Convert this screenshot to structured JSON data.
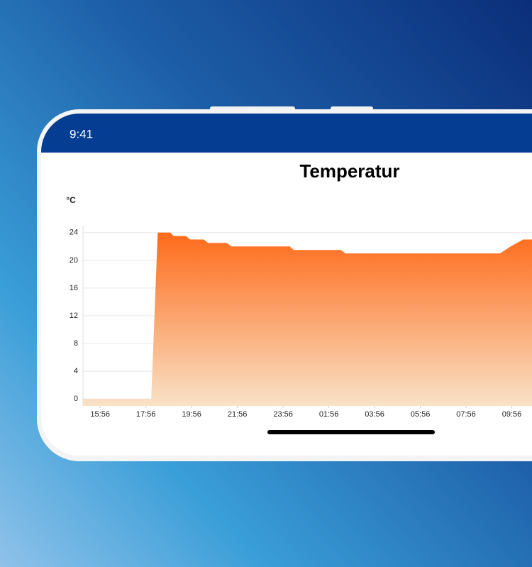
{
  "status_bar": {
    "time": "9:41"
  },
  "chart_data": {
    "type": "area",
    "title": "Temperatur",
    "y_label": "°C",
    "x": [
      "15:11",
      "18:10",
      "18:27",
      "19:00",
      "19:09",
      "19:41",
      "19:52",
      "20:28",
      "20:39",
      "21:29",
      "21:40",
      "00:13",
      "00:24",
      "02:27",
      "02:40",
      "09:25",
      "09:53",
      "10:26",
      "10:49"
    ],
    "series": [
      {
        "name": "Temperatur",
        "color": "#ff6a1a",
        "values": [
          0,
          0,
          24,
          24,
          23.5,
          23.5,
          23,
          23,
          22.5,
          22.5,
          22,
          22,
          21.5,
          21.5,
          21,
          21,
          22,
          23,
          23
        ]
      }
    ],
    "xlim": [
      "15:11",
      "10:49"
    ],
    "xticks": [
      "15:56",
      "17:56",
      "19:56",
      "21:56",
      "23:56",
      "01:56",
      "03:56",
      "05:56",
      "07:56",
      "09:56"
    ],
    "ylim": [
      -1,
      25
    ],
    "yticks": [
      0,
      4,
      8,
      12,
      16,
      20,
      24
    ],
    "grid": true
  }
}
